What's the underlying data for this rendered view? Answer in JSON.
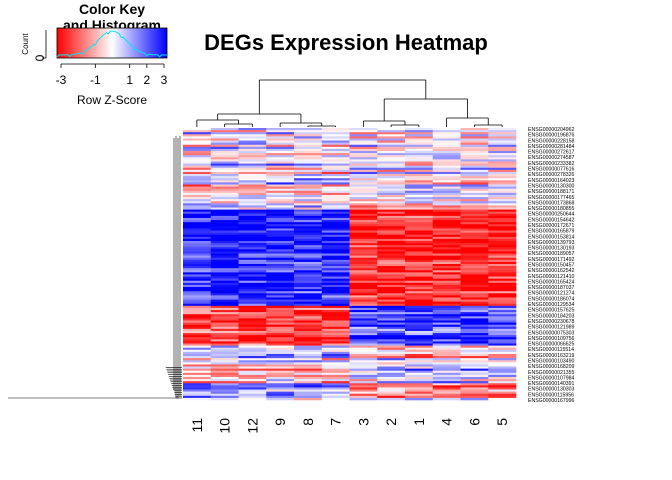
{
  "chart_data": {
    "type": "heatmap",
    "title": "DEGs Expression Heatmap",
    "columns": [
      "11",
      "10",
      "12",
      "9",
      "8",
      "7",
      "3",
      "2",
      "1",
      "4",
      "6",
      "5"
    ],
    "row_labels": [
      "ENSG00000204962",
      "ENSG00000196876",
      "ENSG00000228158",
      "ENSG00000281484",
      "ENSG00000272617",
      "ENSG00000274587",
      "ENSG00000233382",
      "ENSG00000077616",
      "ENSG00000278326",
      "ENSG00000164023",
      "ENSG00000130300",
      "ENSG00000188171",
      "ENSG00000177465",
      "ENSG00000173868",
      "ENSG00000180855",
      "ENSG00000250644",
      "ENSG00000154642",
      "ENSG00000172671",
      "ENSG00000165879",
      "ENSG00000153814",
      "ENSG00000139793",
      "ENSG00000130193",
      "ENSG00000189057",
      "ENSG00000171492",
      "ENSG00000150457",
      "ENSG00000162542",
      "ENSG00000121410",
      "ENSG00000165424",
      "ENSG00000187037",
      "ENSG00000121274",
      "ENSG00000186074",
      "ENSG00000129534",
      "ENSG00000157625",
      "ENSG00000184203",
      "ENSG00000230678",
      "ENSG00000121989",
      "ENSG00000075303",
      "ENSG00000109756",
      "ENSG00000066625",
      "ENSG00000115514",
      "ENSG00000163219",
      "ENSG00000103490",
      "ENSG00000168209",
      "ENSG00000021355",
      "ENSG00000107984",
      "ENSG00000140391",
      "ENSG00000130303",
      "ENSG00000115956",
      "ENSG00000167996"
    ],
    "row_count_shown": 130,
    "color_key": {
      "title": "Color Key\nand Histogram",
      "xlabel": "Row Z-Score",
      "ylabel": "Count",
      "ticks": [
        "-3",
        "-1",
        "1",
        "2",
        "3"
      ],
      "y_tick": "0",
      "range": [
        -3,
        3
      ],
      "colors": {
        "low": "#ff0000",
        "mid": "#ffffff",
        "high": "#0000ff"
      },
      "histogram_color": "#00ffff"
    },
    "column_groups": {
      "left": [
        "11",
        "10",
        "12",
        "9",
        "8",
        "7"
      ],
      "right": [
        "3",
        "2",
        "1",
        "4",
        "6",
        "5"
      ]
    },
    "dendrogram_color": "#000000"
  }
}
